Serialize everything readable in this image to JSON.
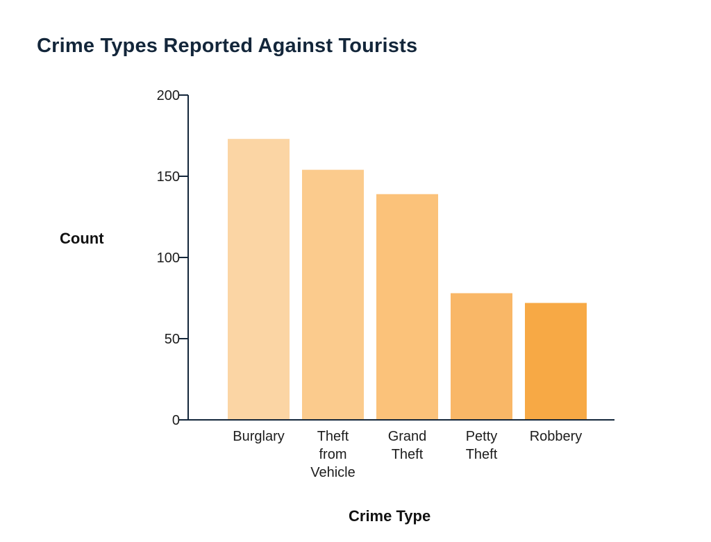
{
  "chart_data": {
    "type": "bar",
    "title": "Crime Types Reported Against Tourists",
    "xlabel": "Crime Type",
    "ylabel": "Count",
    "categories": [
      "Burglary",
      "Theft from Vehicle",
      "Grand Theft",
      "Petty Theft",
      "Robbery"
    ],
    "category_lines": [
      [
        "Burglary"
      ],
      [
        "Theft",
        "from",
        "Vehicle"
      ],
      [
        "Grand",
        "Theft"
      ],
      [
        "Petty",
        "Theft"
      ],
      [
        "Robbery"
      ]
    ],
    "values": [
      173,
      154,
      139,
      78,
      72
    ],
    "ylim": [
      0,
      200
    ],
    "yticks": [
      0,
      50,
      100,
      150,
      200
    ],
    "grid": false,
    "colors": [
      "#fbd5a4",
      "#fbcb8d",
      "#fbc27a",
      "#f9b767",
      "#f7a945"
    ],
    "axis_color": "#13263a"
  }
}
